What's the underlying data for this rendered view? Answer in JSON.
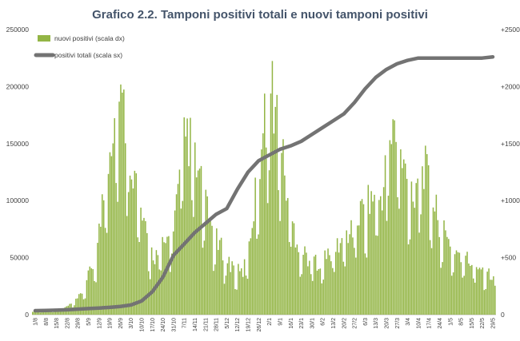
{
  "chart_data": {
    "type": "bar+line",
    "title": "Grafico 2.2. Tamponi positivi totali e nuovi tamponi positivi",
    "legend": [
      {
        "name": "nuovi positivi (scala dx)",
        "color": "#93b545",
        "kind": "bar"
      },
      {
        "name": "positivi totali (scala sx)",
        "color": "#737373",
        "kind": "line"
      }
    ],
    "legend_position": "top-left",
    "grid": false,
    "y_left": {
      "min": 0,
      "max": 250000,
      "ticks": [
        "0",
        "50000",
        "100000",
        "150000",
        "200000",
        "250000"
      ]
    },
    "y_right": {
      "min": 0,
      "max": 2500,
      "ticks": [
        "0",
        "+500",
        "+1000",
        "+1500",
        "+2000",
        "+2500"
      ]
    },
    "x_ticks": [
      "1/8",
      "8/8",
      "15/8",
      "22/8",
      "29/8",
      "5/9",
      "12/9",
      "19/9",
      "26/9",
      "3/10",
      "10/10",
      "17/10",
      "24/10",
      "31/10",
      "7/11",
      "14/11",
      "21/11",
      "28/11",
      "5/12",
      "12/12",
      "19/12",
      "26/12",
      "2/1",
      "9/1",
      "16/1",
      "23/1",
      "30/1",
      "6/2",
      "13/2",
      "20/2",
      "27/2",
      "6/3",
      "13/3",
      "20/3",
      "27/3",
      "3/4",
      "10/4",
      "17/4",
      "24/4",
      "1/5",
      "8/5",
      "15/5",
      "22/5",
      "29/5"
    ],
    "series": [
      {
        "name": "positivi totali (scala sx)",
        "axis": "left",
        "points_per_tick": 1,
        "values": [
          3500,
          3700,
          3900,
          4300,
          4800,
          5300,
          5800,
          6400,
          7200,
          8500,
          12000,
          20000,
          33000,
          52000,
          62000,
          72000,
          80000,
          88000,
          93000,
          110000,
          125000,
          135000,
          140000,
          145000,
          148000,
          152000,
          158000,
          164000,
          170000,
          176000,
          186000,
          198000,
          208000,
          215000,
          220000,
          223000,
          225000,
          225000,
          225000,
          225000,
          225000,
          225000,
          225000,
          226000
        ]
      },
      {
        "name": "nuovi positivi (scala dx)",
        "axis": "right",
        "values": [
          30,
          28,
          32,
          35,
          40,
          42,
          45,
          55,
          70,
          90,
          120,
          160,
          230,
          330,
          430,
          570,
          860,
          1230,
          1520,
          1740,
          1860,
          1820,
          1650,
          1420,
          1180,
          950,
          760,
          600,
          540,
          520,
          580,
          620,
          690,
          860,
          1050,
          1420,
          1600,
          1480,
          1310,
          1190,
          1010,
          860,
          760,
          640,
          580,
          520,
          450,
          420,
          380,
          360,
          520,
          760,
          1040,
          1380,
          1650,
          1880,
          1950,
          1790,
          1490,
          1190,
          940,
          760,
          640,
          560,
          520,
          490,
          470,
          470,
          490,
          520,
          560,
          600,
          640,
          690,
          740,
          800,
          860,
          920,
          980,
          1030,
          1050,
          1010,
          1120,
          1480,
          1670,
          1560,
          1380,
          1240,
          1130,
          1080,
          1240,
          1380,
          1220,
          1090,
          930,
          820,
          710,
          640,
          600,
          560,
          520,
          500,
          470,
          450,
          440,
          420,
          390,
          370,
          360
        ]
      }
    ]
  }
}
